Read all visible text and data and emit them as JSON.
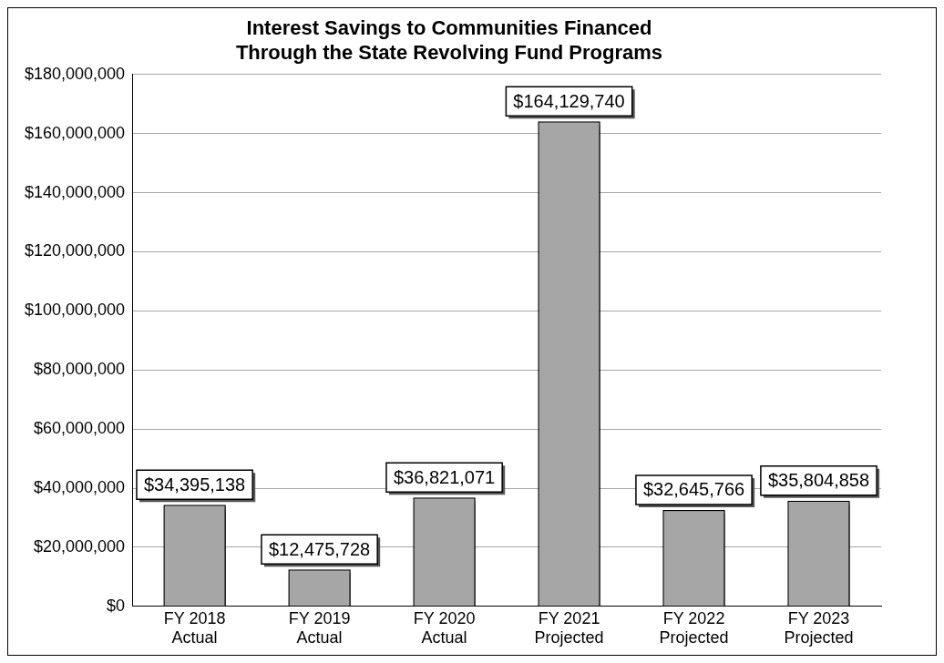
{
  "chart_data": {
    "type": "bar",
    "title": "Interest Savings to Communities Financed\nThrough the State Revolving Fund Programs",
    "categories": [
      "FY 2018\nActual",
      "FY 2019\nActual",
      "FY 2020\nActual",
      "FY 2021\nProjected",
      "FY 2022\nProjected",
      "FY 2023\nProjected"
    ],
    "values": [
      34395138,
      12475728,
      36821071,
      164129740,
      32645766,
      35804858
    ],
    "value_labels": [
      "$34,395,138",
      "$12,475,728",
      "$36,821,071",
      "$164,129,740",
      "$32,645,766",
      "$35,804,858"
    ],
    "color": "#a6a6a6",
    "ylim": [
      0,
      180000000
    ],
    "yticks": [
      {
        "value": 0,
        "label": "$0"
      },
      {
        "value": 20000000,
        "label": "$20,000,000"
      },
      {
        "value": 40000000,
        "label": "$40,000,000"
      },
      {
        "value": 60000000,
        "label": "$60,000,000"
      },
      {
        "value": 80000000,
        "label": "$80,000,000"
      },
      {
        "value": 100000000,
        "label": "$100,000,000"
      },
      {
        "value": 120000000,
        "label": "$120,000,000"
      },
      {
        "value": 140000000,
        "label": "$140,000,000"
      },
      {
        "value": 160000000,
        "label": "$160,000,000"
      },
      {
        "value": 180000000,
        "label": "$180,000,000"
      }
    ],
    "grid": "y",
    "legend": false
  }
}
